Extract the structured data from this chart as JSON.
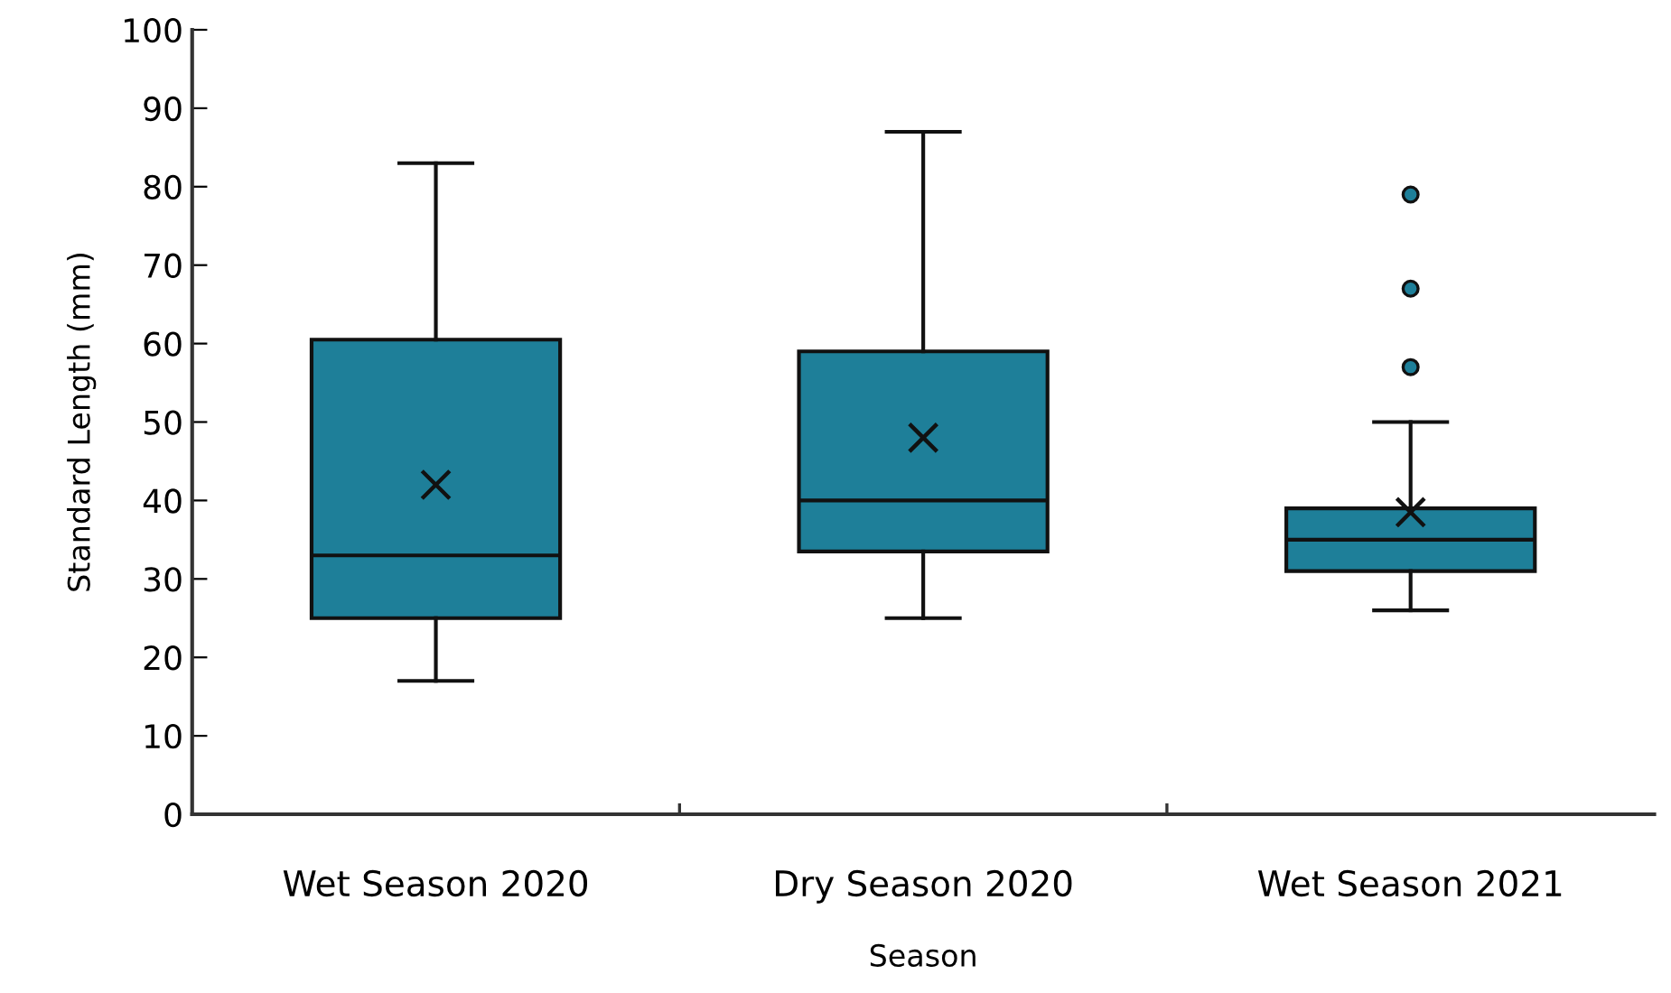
{
  "chart_data": {
    "type": "box",
    "xlabel": "Season",
    "ylabel": "Standard Length (mm)",
    "categories": [
      "Wet Season 2020",
      "Dry Season 2020",
      "Wet Season 2021"
    ],
    "series": [
      {
        "color": "#1e7f99",
        "boxes": [
          {
            "low": 17,
            "q1": 25,
            "median": 33,
            "q3": 60.5,
            "high": 83,
            "mean": 42
          },
          {
            "low": 25,
            "q1": 33.5,
            "median": 40,
            "q3": 59,
            "high": 87,
            "mean": 48
          },
          {
            "low": 26,
            "q1": 31,
            "median": 35,
            "q3": 39,
            "high": 50,
            "mean": 38.5,
            "outliers": [
              57,
              67,
              79
            ]
          }
        ]
      }
    ],
    "ylim": [
      0,
      100
    ],
    "yticks": [
      0,
      10,
      20,
      30,
      40,
      50,
      60,
      70,
      80,
      90,
      100
    ],
    "grid": false
  }
}
